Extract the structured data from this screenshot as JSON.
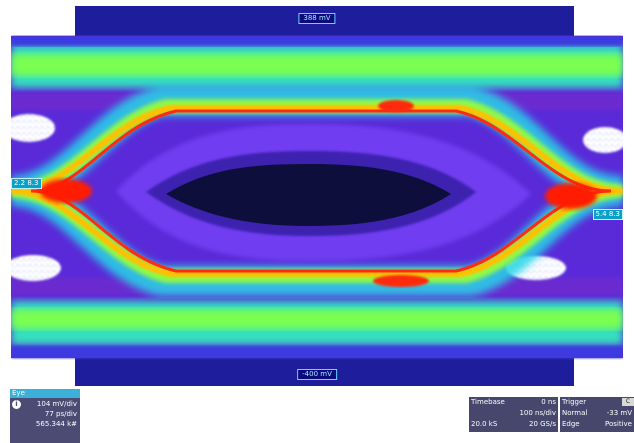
{
  "screen": {
    "top_level_label": "388 mV",
    "bottom_level_label": "-400 mV",
    "left_marker": "2.2 8.3",
    "right_marker": "5.4 8.3"
  },
  "eye_panel": {
    "title": "Eye",
    "info_icon": "info-icon",
    "vertical_scale": "104 mV/div",
    "horizontal_scale": "77 ps/div",
    "count": "565.344 k#"
  },
  "timebase_panel": {
    "title": "Timebase",
    "delay": "0 ns",
    "time_per_div": "100 ns/div",
    "samples": "20.0 kS",
    "sample_rate": "20 GS/s"
  },
  "trigger_panel": {
    "title": "Trigger",
    "channel": "C",
    "mode": "Normal",
    "level": "-33 mV",
    "type": "Edge",
    "slope": "Positive"
  },
  "colors": {
    "background": "#1a1aa6",
    "panel": "#47476e",
    "title_bar": "#3bb0d8"
  }
}
